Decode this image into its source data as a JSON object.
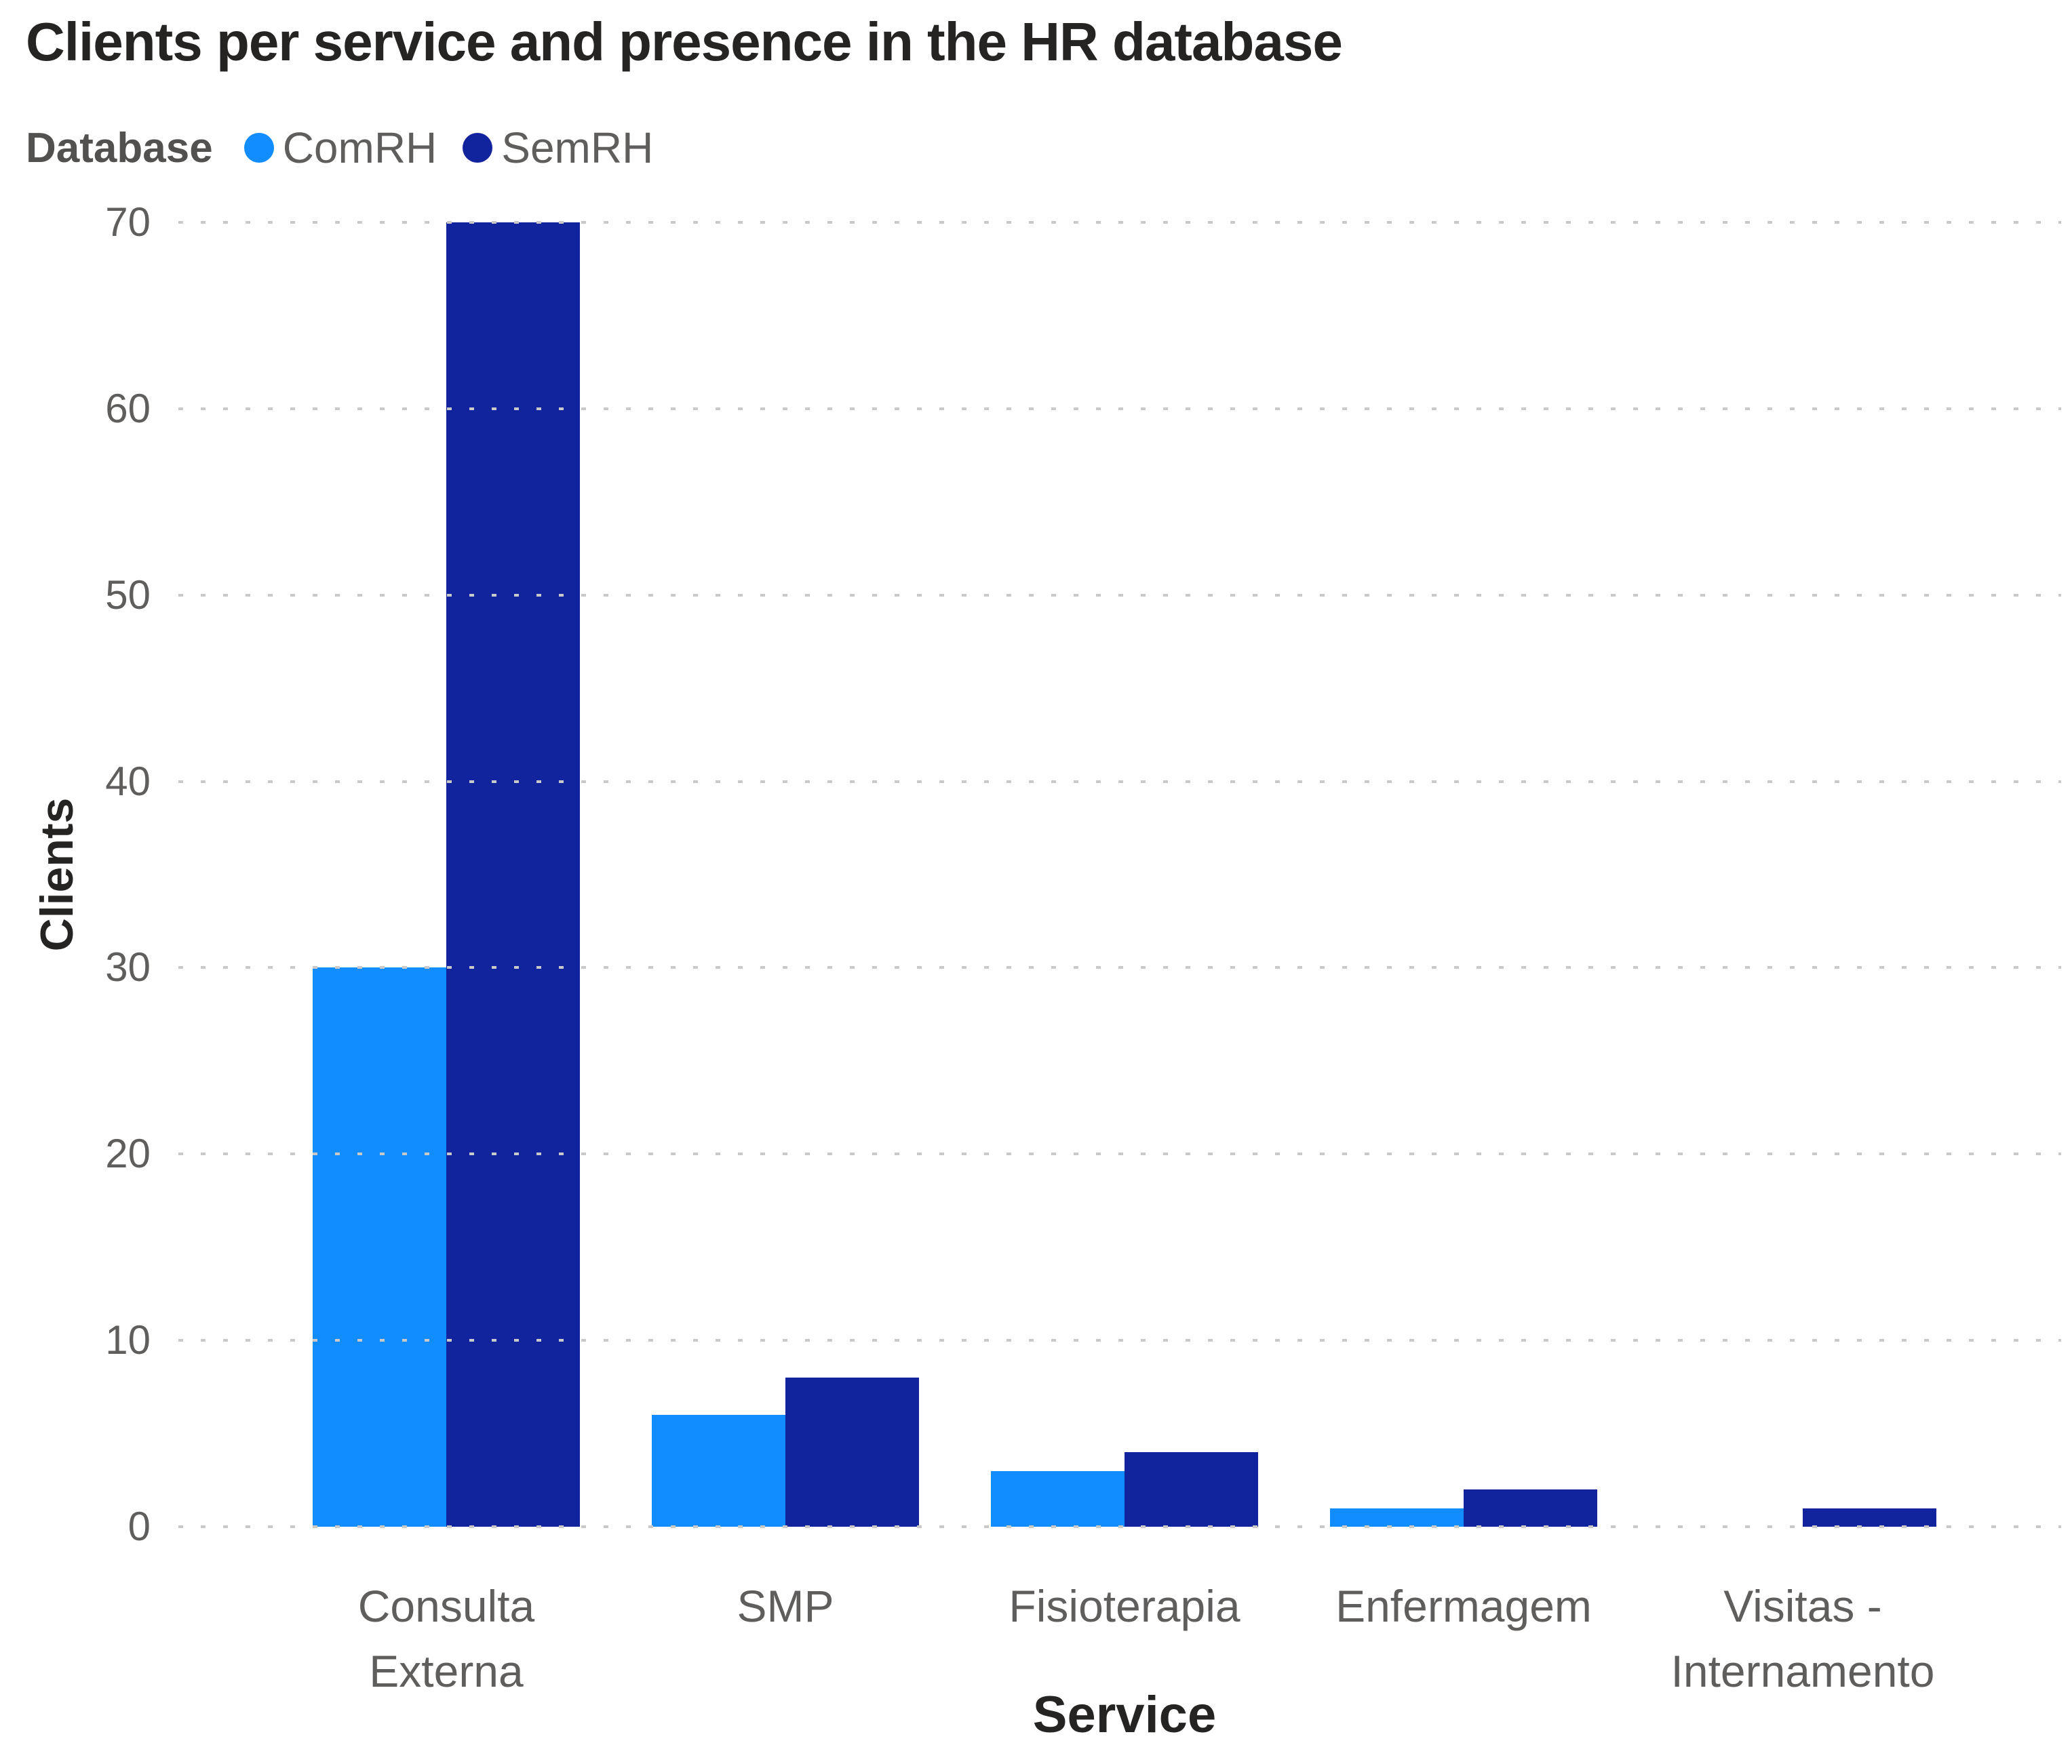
{
  "title": "Clients per service and presence in the HR database",
  "legend": {
    "label": "Database",
    "items": [
      {
        "name": "ComRH",
        "color": "#118DFF"
      },
      {
        "name": "SemRH",
        "color": "#12239E"
      }
    ]
  },
  "chart_data": {
    "type": "bar",
    "title": "Clients per service and presence in the HR database",
    "categories": [
      "Consulta Externa",
      "SMP",
      "Fisioterapia",
      "Enfermagem",
      "Visitas - Internamento"
    ],
    "category_label_lines": [
      "Consulta\nExterna",
      "SMP",
      "Fisioterapia",
      "Enfermagem",
      "Visitas -\nInternamento"
    ],
    "series": [
      {
        "name": "ComRH",
        "color": "#118DFF",
        "values": [
          30,
          6,
          3,
          1,
          0
        ]
      },
      {
        "name": "SemRH",
        "color": "#12239E",
        "values": [
          70,
          8,
          4,
          2,
          1
        ]
      }
    ],
    "xlabel": "Service",
    "ylabel": "Clients",
    "ylim": [
      0,
      70
    ],
    "yticks": [
      0,
      10,
      20,
      30,
      40,
      50,
      60,
      70
    ],
    "grid": "dotted-horizontal",
    "gridline_color": "#C9C9C9",
    "legend_position": "top-left",
    "background": "#FFFFFF"
  }
}
